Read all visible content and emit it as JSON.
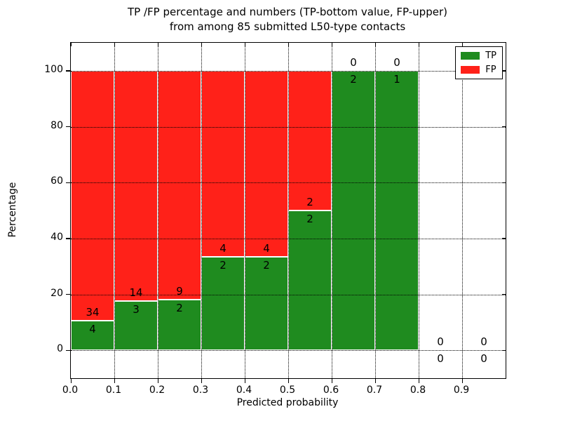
{
  "title": {
    "line1": "TP /FP percentage and numbers (TP-bottom value, FP-upper)",
    "line2": "from among 85 submitted L50-type contacts"
  },
  "axes": {
    "xlabel": "Predicted probability",
    "ylabel": "Percentage",
    "x_ticks": [
      "0.0",
      "0.1",
      "0.2",
      "0.3",
      "0.4",
      "0.5",
      "0.6",
      "0.7",
      "0.8",
      "0.9"
    ],
    "y_ticks": [
      "0",
      "20",
      "40",
      "60",
      "80",
      "100"
    ]
  },
  "legend": {
    "items": [
      {
        "label": "TP",
        "color": "#1f8b1f"
      },
      {
        "label": "FP",
        "color": "#ff2119"
      }
    ]
  },
  "chart_data": {
    "type": "bar",
    "stacked": true,
    "title": "TP /FP percentage and numbers (TP-bottom value, FP-upper) from among 85 submitted L50-type contacts",
    "xlabel": "Predicted probability",
    "ylabel": "Percentage",
    "xlim": [
      0,
      1.0
    ],
    "ylim": [
      -10,
      110
    ],
    "grid": true,
    "grid_style": "dotted",
    "legend_position": "upper right",
    "total_contacts": 85,
    "bin_edges": [
      0.0,
      0.1,
      0.2,
      0.3,
      0.4,
      0.5,
      0.6,
      0.7,
      0.8,
      0.9,
      1.0
    ],
    "x_tick_values": [
      0.0,
      0.1,
      0.2,
      0.3,
      0.4,
      0.5,
      0.6,
      0.7,
      0.8,
      0.9
    ],
    "y_tick_values": [
      0,
      20,
      40,
      60,
      80,
      100
    ],
    "series": [
      {
        "name": "TP",
        "color": "#1f8b1f",
        "counts": [
          4,
          3,
          2,
          2,
          2,
          2,
          2,
          1,
          0,
          0
        ],
        "pct": [
          10.53,
          17.65,
          18.18,
          33.33,
          33.33,
          50,
          100,
          100,
          0,
          0
        ]
      },
      {
        "name": "FP",
        "color": "#ff2119",
        "counts": [
          34,
          14,
          9,
          4,
          4,
          2,
          0,
          0,
          0,
          0
        ],
        "pct": [
          89.47,
          82.35,
          81.82,
          66.67,
          66.67,
          50,
          0,
          0,
          0,
          0
        ]
      }
    ]
  }
}
